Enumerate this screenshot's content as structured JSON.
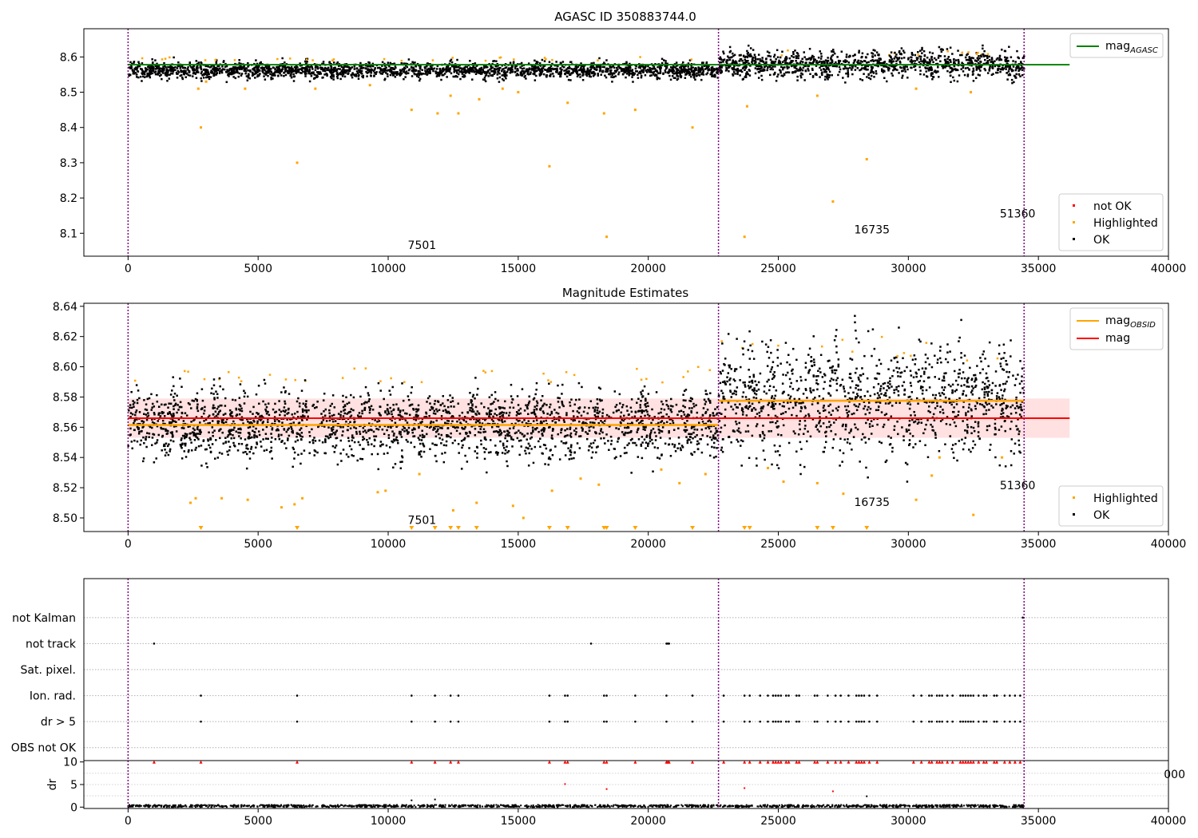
{
  "colors": {
    "ok": "#000000",
    "highlighted": "#ffa500",
    "not_ok": "#ff0000",
    "agasc_line": "#008000",
    "obsid_line": "#ffa500",
    "mag_line": "#ff0000",
    "mag_band": "#ffc8c8",
    "obsid_vline": "#800080"
  },
  "obsid_labels": [
    "7501",
    "16735",
    "51360"
  ],
  "obsid_boundaries": [
    0,
    22700,
    34450
  ],
  "chart_data": [
    {
      "type": "scatter",
      "title": "AGASC ID 350883744.0",
      "xlabel": "",
      "ylabel": "",
      "xlim": [
        -1700,
        40000
      ],
      "ylim": [
        8.035,
        8.68
      ],
      "xticks": [
        0,
        5000,
        10000,
        15000,
        20000,
        25000,
        30000,
        35000,
        40000
      ],
      "yticks": [
        8.1,
        8.2,
        8.3,
        8.4,
        8.5,
        8.6
      ],
      "ytick_format": 1,
      "grid": false,
      "legend_top": {
        "placement": "top-right",
        "entries": [
          {
            "label": "mag",
            "sub": "AGASC",
            "kind": "line",
            "color": "#008000"
          }
        ]
      },
      "legend_bottom": {
        "placement": "lower-right",
        "entries": [
          {
            "label": "not OK",
            "kind": "marker",
            "color": "#ff0000"
          },
          {
            "label": "Highlighted",
            "kind": "marker",
            "color": "#ffa500"
          },
          {
            "label": "OK",
            "kind": "marker",
            "color": "#000000"
          }
        ]
      },
      "hlines": [
        {
          "name": "mag_AGASC",
          "y": 8.578,
          "x": [
            0,
            36200
          ],
          "color": "#008000"
        }
      ],
      "segments": [
        {
          "x": [
            0,
            22700
          ],
          "mean": 8.562,
          "spread": 0.012,
          "hi": 8.6
        },
        {
          "x": [
            22700,
            34450
          ],
          "mean": 8.578,
          "spread": 0.02,
          "hi": 8.62
        }
      ],
      "obsid_label_positions": [
        {
          "label": "7501",
          "x": 11300,
          "y": 8.055
        },
        {
          "label": "16735",
          "x": 28600,
          "y": 8.1
        },
        {
          "label": "51360",
          "x": 34200,
          "y": 8.145
        }
      ],
      "outliers": [
        [
          2700,
          8.51
        ],
        [
          2800,
          8.4
        ],
        [
          3000,
          8.53
        ],
        [
          4500,
          8.51
        ],
        [
          6500,
          8.3
        ],
        [
          7200,
          8.51
        ],
        [
          9300,
          8.52
        ],
        [
          10900,
          8.45
        ],
        [
          11900,
          8.44
        ],
        [
          12400,
          8.49
        ],
        [
          12700,
          8.44
        ],
        [
          13500,
          8.48
        ],
        [
          14400,
          8.51
        ],
        [
          15000,
          8.5
        ],
        [
          16200,
          8.29
        ],
        [
          16900,
          8.47
        ],
        [
          18300,
          8.44
        ],
        [
          18400,
          8.09
        ],
        [
          19500,
          8.45
        ],
        [
          21700,
          8.4
        ],
        [
          23700,
          8.09
        ],
        [
          23800,
          8.46
        ],
        [
          26500,
          8.49
        ],
        [
          27100,
          8.19
        ],
        [
          28400,
          8.31
        ],
        [
          30300,
          8.51
        ],
        [
          32400,
          8.5
        ]
      ]
    },
    {
      "type": "scatter",
      "title": "Magnitude Estimates",
      "xlabel": "",
      "ylabel": "",
      "xlim": [
        -1700,
        40000
      ],
      "ylim": [
        8.491,
        8.642
      ],
      "xticks": [
        0,
        5000,
        10000,
        15000,
        20000,
        25000,
        30000,
        35000,
        40000
      ],
      "yticks": [
        8.5,
        8.52,
        8.54,
        8.56,
        8.58,
        8.6,
        8.62,
        8.64
      ],
      "ytick_format": 2,
      "grid": false,
      "legend_top": {
        "placement": "top-right",
        "entries": [
          {
            "label": "mag",
            "sub": "OBSID",
            "kind": "line",
            "color": "#ffa500"
          },
          {
            "label": "mag",
            "sub": "",
            "kind": "line",
            "color": "#ff0000"
          }
        ]
      },
      "legend_bottom": {
        "placement": "lower-right",
        "entries": [
          {
            "label": "Highlighted",
            "kind": "marker",
            "color": "#ffa500"
          },
          {
            "label": "OK",
            "kind": "marker",
            "color": "#000000"
          }
        ]
      },
      "band": {
        "y": [
          8.553,
          8.579
        ],
        "x": [
          0,
          36200
        ]
      },
      "hlines": [
        {
          "name": "mag",
          "y": 8.566,
          "x": [
            0,
            36200
          ],
          "color": "#ff0000"
        }
      ],
      "obsid_hlines": [
        {
          "name": "mag_OBSID 7501",
          "y": 8.5615,
          "x": [
            0,
            22700
          ],
          "color": "#ffa500"
        },
        {
          "name": "mag_OBSID 16735",
          "y": 8.5775,
          "x": [
            22700,
            34450
          ],
          "color": "#ffa500"
        }
      ],
      "segments": [
        {
          "x": [
            0,
            22700
          ],
          "mean": 8.562,
          "spread": 0.012,
          "hi": 8.6
        },
        {
          "x": [
            22700,
            34450
          ],
          "mean": 8.578,
          "spread": 0.02,
          "hi": 8.62
        }
      ],
      "obsid_label_positions": [
        {
          "label": "7501",
          "x": 11300,
          "y": 8.496
        },
        {
          "label": "16735",
          "x": 28600,
          "y": 8.508
        },
        {
          "label": "51360",
          "x": 34200,
          "y": 8.519
        }
      ],
      "outliers": [
        [
          2400,
          8.51
        ],
        [
          2600,
          8.513
        ],
        [
          3600,
          8.513
        ],
        [
          4600,
          8.512
        ],
        [
          5900,
          8.507
        ],
        [
          6400,
          8.509
        ],
        [
          6700,
          8.513
        ],
        [
          9600,
          8.517
        ],
        [
          9900,
          8.518
        ],
        [
          11200,
          8.529
        ],
        [
          12500,
          8.505
        ],
        [
          13400,
          8.51
        ],
        [
          14800,
          8.508
        ],
        [
          15200,
          8.5
        ],
        [
          16300,
          8.518
        ],
        [
          17400,
          8.526
        ],
        [
          18100,
          8.522
        ],
        [
          20500,
          8.532
        ],
        [
          21200,
          8.523
        ],
        [
          22200,
          8.529
        ],
        [
          24600,
          8.533
        ],
        [
          25200,
          8.524
        ],
        [
          26500,
          8.523
        ],
        [
          27500,
          8.516
        ],
        [
          30300,
          8.512
        ],
        [
          30900,
          8.528
        ],
        [
          31200,
          8.54
        ],
        [
          32500,
          8.502
        ],
        [
          33600,
          8.54
        ]
      ],
      "below_range": [
        2800,
        6500,
        10900,
        11800,
        12400,
        12700,
        13400,
        16200,
        16900,
        18300,
        18400,
        19500,
        21700,
        23700,
        23900,
        26500,
        27100,
        28400
      ]
    },
    {
      "type": "scatter",
      "title": "",
      "xlabel": "",
      "ylabel": "",
      "xlim": [
        -1700,
        40000
      ],
      "ylim": [
        -0.5,
        6.5
      ],
      "categories": [
        "OBS not OK",
        "dr > 5",
        "Ion. rad.",
        "Sat. pixel.",
        "not track",
        "not Kalman"
      ],
      "grid": true,
      "flags": {
        "not Kalman": [
          34400
        ],
        "not track": [
          1000,
          17800,
          20700,
          20750,
          20800
        ],
        "Sat. pixel.": [],
        "Ion. rad.": [
          2800,
          6500,
          10900,
          11800,
          12400,
          12700,
          16200,
          16800,
          16900,
          18300,
          18400,
          19500,
          20700,
          21700,
          22900,
          23700,
          23900,
          24300,
          24600,
          24800,
          24900,
          25000,
          25100,
          25300,
          25400,
          25700,
          25800,
          26400,
          26500,
          26900,
          27200,
          27400,
          27700,
          28000,
          28100,
          28200,
          28300,
          28500,
          28800,
          30200,
          30500,
          30800,
          30900,
          31100,
          31200,
          31300,
          31500,
          31700,
          32000,
          32100,
          32200,
          32300,
          32400,
          32500,
          32700,
          32900,
          33000,
          33300,
          33400,
          33700,
          33900,
          34100,
          34300
        ],
        "dr > 5": [
          2800,
          6500,
          10900,
          11800,
          12400,
          12700,
          16200,
          16800,
          16900,
          18300,
          18400,
          19500,
          20700,
          21700,
          22900,
          23700,
          23900,
          24300,
          24600,
          24800,
          24900,
          25000,
          25100,
          25300,
          25400,
          25700,
          25800,
          26400,
          26500,
          26900,
          27200,
          27400,
          27700,
          28000,
          28100,
          28200,
          28300,
          28500,
          28800,
          30200,
          30500,
          30800,
          30900,
          31100,
          31200,
          31300,
          31500,
          31700,
          32000,
          32100,
          32200,
          32300,
          32400,
          32500,
          32700,
          32900,
          33000,
          33300,
          33400,
          33700,
          33900,
          34100,
          34300
        ],
        "OBS not OK": []
      }
    },
    {
      "type": "scatter",
      "title": "",
      "xlabel": "",
      "ylabel": "dr",
      "xlim": [
        -1700,
        40000
      ],
      "ylim": [
        -0.3,
        10.3
      ],
      "xticks": [
        0,
        5000,
        10000,
        15000,
        20000,
        25000,
        30000,
        35000,
        40000
      ],
      "yticks": [
        0,
        5,
        10
      ],
      "clipped_tick_text": "000",
      "grid": true,
      "baseline": {
        "x": [
          0,
          34450
        ],
        "y": [
          0,
          0.5
        ]
      },
      "clipped_at_10": [
        1000,
        2800,
        6500,
        10900,
        11800,
        12400,
        12700,
        16200,
        16800,
        16900,
        18300,
        18400,
        19500,
        20700,
        20750,
        20800,
        21700,
        22900,
        23700,
        23900,
        24300,
        24600,
        24800,
        24900,
        25000,
        25100,
        25300,
        25400,
        25700,
        25800,
        26400,
        26500,
        26900,
        27200,
        27400,
        27700,
        28000,
        28100,
        28200,
        28300,
        28500,
        28800,
        30200,
        30500,
        30800,
        30900,
        31100,
        31200,
        31300,
        31500,
        31700,
        32000,
        32100,
        32200,
        32300,
        32400,
        32500,
        32700,
        32900,
        33000,
        33300,
        33400,
        33700,
        33900,
        34100,
        34300
      ],
      "mid_points_red": [
        [
          16800,
          5.1
        ],
        [
          18400,
          4.0
        ],
        [
          23700,
          4.2
        ],
        [
          27100,
          3.5
        ]
      ],
      "mid_points_black": [
        [
          10900,
          1.5
        ],
        [
          11800,
          1.7
        ],
        [
          28400,
          2.4
        ]
      ]
    }
  ]
}
